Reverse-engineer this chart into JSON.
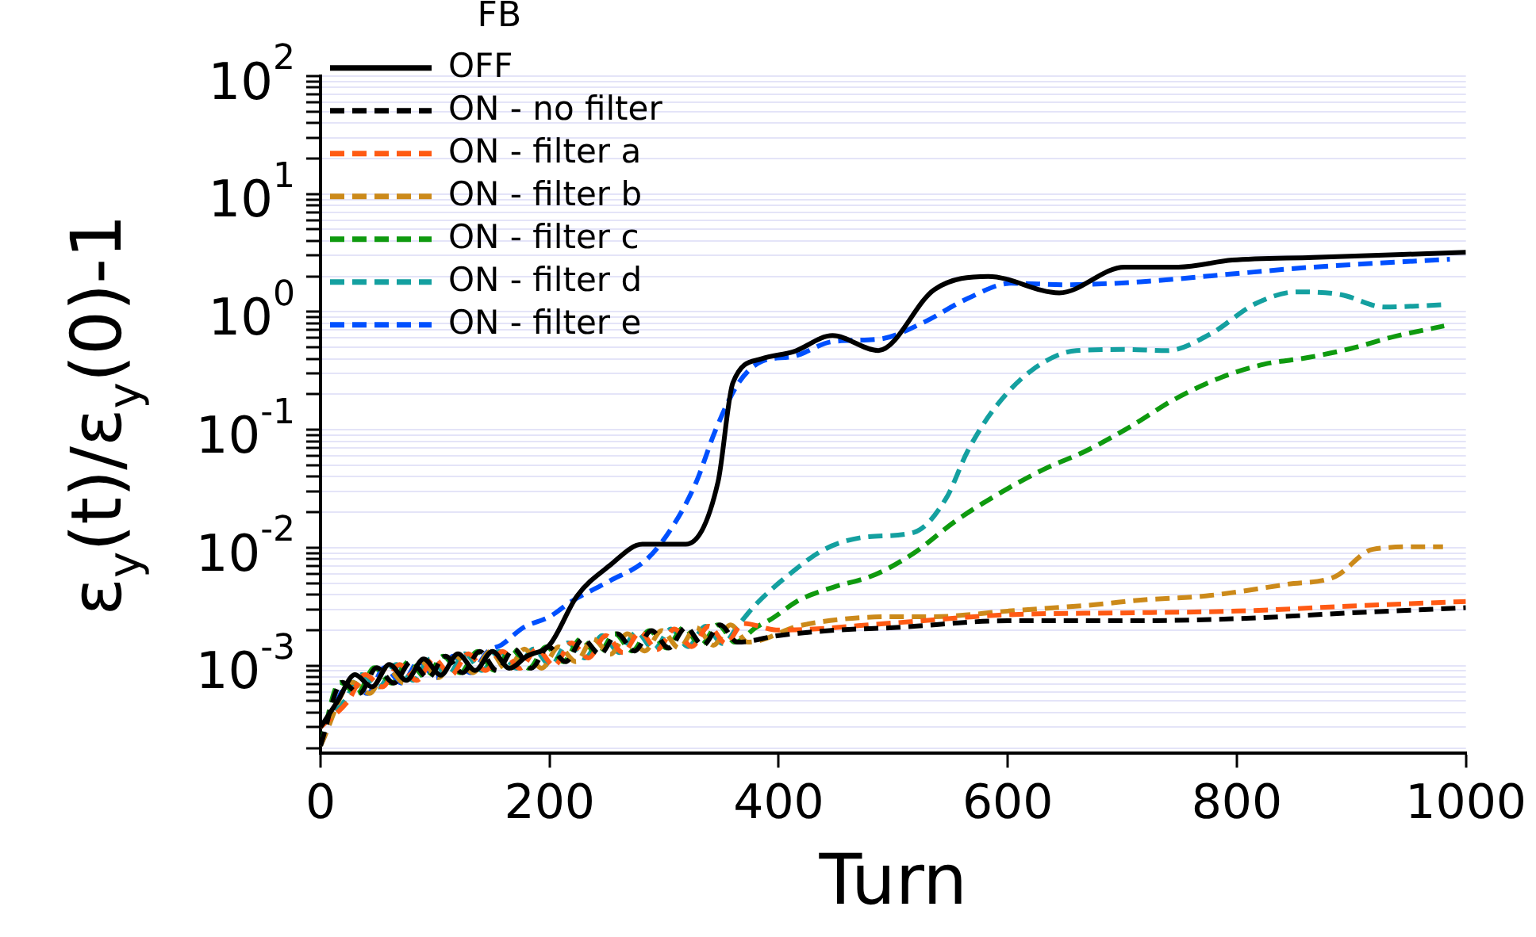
{
  "chart_data": {
    "type": "line",
    "xlabel": "Turn",
    "ylabel": "ε$_{y}$(t)/ε$_{y}$(0)-1",
    "legend_title": "FB",
    "legend": "top left",
    "grid": "y",
    "log": "y",
    "marker": "none",
    "xlim": [
      0,
      1000
    ],
    "xticks": [
      0,
      200,
      400,
      600,
      800,
      1000
    ],
    "ylim": [
      0.00018,
      100
    ],
    "yticks": [
      {
        "value": 0.0002,
        "label": null
      },
      {
        "value": 0.0003,
        "label": null
      },
      {
        "value": 0.0004,
        "label": null
      },
      {
        "value": 0.0005,
        "label": null
      },
      {
        "value": 0.0006,
        "label": null
      },
      {
        "value": 0.0007,
        "label": null
      },
      {
        "value": 0.0008,
        "label": null
      },
      {
        "value": 0.0009,
        "label": null
      },
      {
        "value": 0.001,
        "label": "10$^{-3}$"
      },
      {
        "value": 0.002,
        "label": null
      },
      {
        "value": 0.003,
        "label": null
      },
      {
        "value": 0.004,
        "label": null
      },
      {
        "value": 0.005,
        "label": null
      },
      {
        "value": 0.006,
        "label": null
      },
      {
        "value": 0.007,
        "label": null
      },
      {
        "value": 0.008,
        "label": null
      },
      {
        "value": 0.009,
        "label": null
      },
      {
        "value": 0.01,
        "label": "10$^{-2}$"
      },
      {
        "value": 0.02,
        "label": null
      },
      {
        "value": 0.03,
        "label": null
      },
      {
        "value": 0.04,
        "label": null
      },
      {
        "value": 0.05,
        "label": null
      },
      {
        "value": 0.06,
        "label": null
      },
      {
        "value": 0.07,
        "label": null
      },
      {
        "value": 0.08,
        "label": null
      },
      {
        "value": 0.09,
        "label": null
      },
      {
        "value": 0.1,
        "label": "10$^{-1}$"
      },
      {
        "value": 0.2,
        "label": null
      },
      {
        "value": 0.3,
        "label": null
      },
      {
        "value": 0.4,
        "label": null
      },
      {
        "value": 0.5,
        "label": null
      },
      {
        "value": 0.6,
        "label": null
      },
      {
        "value": 0.7,
        "label": null
      },
      {
        "value": 0.8,
        "label": null
      },
      {
        "value": 0.9,
        "label": null
      },
      {
        "value": 1,
        "label": "10$^{0}$"
      },
      {
        "value": 2,
        "label": null
      },
      {
        "value": 3,
        "label": null
      },
      {
        "value": 4,
        "label": null
      },
      {
        "value": 5,
        "label": null
      },
      {
        "value": 6,
        "label": null
      },
      {
        "value": 7,
        "label": null
      },
      {
        "value": 8,
        "label": null
      },
      {
        "value": 9,
        "label": null
      },
      {
        "value": 10,
        "label": "10$^{1}$"
      },
      {
        "value": 20,
        "label": null
      },
      {
        "value": 30,
        "label": null
      },
      {
        "value": 40,
        "label": null
      },
      {
        "value": 50,
        "label": null
      },
      {
        "value": 60,
        "label": null
      },
      {
        "value": 70,
        "label": null
      },
      {
        "value": 80,
        "label": null
      },
      {
        "value": 90,
        "label": null
      },
      {
        "value": 100,
        "label": "10$^{2}$"
      }
    ],
    "series": [
      {
        "name": "OFF",
        "color": "#000000",
        "line_style": "solid",
        "x": [
          0,
          15,
          30,
          45,
          60,
          75,
          90,
          105,
          120,
          135,
          150,
          165,
          180,
          200,
          224,
          252,
          281,
          319,
          347,
          360,
          385,
          413,
          447,
          487,
          536,
          583,
          645,
          702,
          749,
          796,
          867,
          1000
        ],
        "values": [
          0.0003,
          0.0005,
          0.00084,
          0.00066,
          0.00102,
          0.00075,
          0.00114,
          0.00083,
          0.00126,
          0.00091,
          0.00132,
          0.00095,
          0.0012,
          0.0015,
          0.0039,
          0.007,
          0.0107,
          0.0107,
          0.036,
          0.25,
          0.4,
          0.46,
          0.63,
          0.47,
          1.55,
          2.0,
          1.45,
          2.4,
          2.4,
          2.75,
          2.9,
          3.2
        ]
      },
      {
        "name": "ON - no filter",
        "color": "#000000",
        "line_style": "dashed",
        "x": [
          0,
          19,
          34,
          49,
          64,
          79,
          94,
          109,
          124,
          139,
          154,
          169,
          184,
          199,
          214,
          229,
          244,
          259,
          274,
          289,
          304,
          319,
          334,
          349,
          364,
          400,
          450,
          500,
          600,
          700,
          800,
          900,
          1000
        ],
        "values": [
          0.00021,
          0.00072,
          0.00058,
          0.00096,
          0.00071,
          0.00108,
          0.00079,
          0.0012,
          0.00087,
          0.00132,
          0.00091,
          0.00138,
          0.00095,
          0.00144,
          0.00108,
          0.00168,
          0.00125,
          0.00186,
          0.00133,
          0.00198,
          0.00141,
          0.0021,
          0.00149,
          0.00222,
          0.00158,
          0.0018,
          0.002,
          0.0021,
          0.0024,
          0.0024,
          0.0025,
          0.0028,
          0.0031
        ]
      },
      {
        "name": "ON - filter a",
        "color": "#ff5a14",
        "line_style": "dashed",
        "x": [
          0,
          24,
          39,
          54,
          69,
          84,
          99,
          114,
          129,
          144,
          159,
          174,
          189,
          204,
          219,
          234,
          249,
          264,
          279,
          294,
          309,
          324,
          339,
          354,
          369,
          400,
          500,
          600,
          700,
          800,
          900,
          1000
        ],
        "values": [
          0.0003,
          0.0005,
          0.00084,
          0.00066,
          0.00102,
          0.00075,
          0.00114,
          0.00083,
          0.00126,
          0.00091,
          0.00132,
          0.00095,
          0.00138,
          0.001,
          0.00156,
          0.00116,
          0.0018,
          0.00129,
          0.00192,
          0.00137,
          0.00204,
          0.00145,
          0.00216,
          0.00154,
          0.00228,
          0.002,
          0.0023,
          0.0027,
          0.0028,
          0.0029,
          0.0032,
          0.0035
        ]
      },
      {
        "name": "ON - filter b",
        "color": "#cc8a1a",
        "line_style": "dashed",
        "x": [
          0,
          28,
          43,
          58,
          73,
          88,
          103,
          118,
          133,
          148,
          163,
          178,
          193,
          208,
          223,
          238,
          253,
          268,
          283,
          298,
          313,
          328,
          343,
          358,
          373,
          420,
          500,
          536,
          600,
          678,
          716,
          773,
          844,
          886,
          919,
          962,
          980
        ],
        "values": [
          0.00021,
          0.00072,
          0.00058,
          0.00096,
          0.00071,
          0.00108,
          0.00079,
          0.0012,
          0.00087,
          0.00132,
          0.00091,
          0.00138,
          0.00095,
          0.00144,
          0.00108,
          0.00168,
          0.00125,
          0.00186,
          0.00133,
          0.00198,
          0.00141,
          0.0021,
          0.00149,
          0.00222,
          0.00158,
          0.0022,
          0.0026,
          0.0026,
          0.0029,
          0.0033,
          0.0036,
          0.0039,
          0.0049,
          0.0057,
          0.0097,
          0.0102,
          0.0102
        ]
      },
      {
        "name": "ON - filter c",
        "color": "#0f9a0f",
        "line_style": "dashed",
        "x": [
          0,
          17,
          32,
          47,
          62,
          77,
          92,
          107,
          122,
          137,
          152,
          167,
          182,
          197,
          212,
          227,
          242,
          257,
          272,
          287,
          302,
          317,
          332,
          347,
          362,
          380,
          394,
          418,
          447,
          484,
          518,
          555,
          593,
          631,
          668,
          706,
          745,
          787,
          824,
          862,
          900,
          938,
          981
        ],
        "values": [
          0.00021,
          0.00072,
          0.00058,
          0.00096,
          0.00071,
          0.00108,
          0.00079,
          0.0012,
          0.00087,
          0.00132,
          0.00091,
          0.00138,
          0.00095,
          0.00144,
          0.00108,
          0.00168,
          0.00125,
          0.00186,
          0.00133,
          0.00198,
          0.00141,
          0.0021,
          0.00149,
          0.00222,
          0.00158,
          0.0021,
          0.0025,
          0.0036,
          0.0046,
          0.0059,
          0.009,
          0.017,
          0.029,
          0.046,
          0.066,
          0.105,
          0.18,
          0.28,
          0.36,
          0.41,
          0.49,
          0.62,
          0.76
        ]
      },
      {
        "name": "ON - filter d",
        "color": "#14a0a0",
        "line_style": "dashed",
        "x": [
          0,
          21,
          36,
          51,
          66,
          81,
          96,
          111,
          126,
          141,
          156,
          171,
          186,
          201,
          216,
          231,
          246,
          261,
          276,
          291,
          306,
          321,
          336,
          351,
          366,
          380,
          408,
          441,
          479,
          518,
          546,
          565,
          588,
          621,
          660,
          702,
          739,
          777,
          816,
          853,
          891,
          929,
          981
        ],
        "values": [
          0.0003,
          0.0005,
          0.00084,
          0.00066,
          0.00102,
          0.00075,
          0.00114,
          0.00083,
          0.00126,
          0.00091,
          0.00132,
          0.00095,
          0.00138,
          0.001,
          0.00156,
          0.00116,
          0.0018,
          0.00129,
          0.00192,
          0.00137,
          0.00204,
          0.00145,
          0.00216,
          0.00154,
          0.00228,
          0.0033,
          0.0058,
          0.0098,
          0.0124,
          0.0135,
          0.026,
          0.066,
          0.15,
          0.32,
          0.47,
          0.48,
          0.47,
          0.65,
          1.17,
          1.48,
          1.4,
          1.1,
          1.15
        ]
      },
      {
        "name": "ON - filter e",
        "color": "#0050ff",
        "line_style": "dashed",
        "x": [
          0,
          26,
          41,
          56,
          71,
          86,
          101,
          116,
          131,
          146,
          158,
          177,
          200,
          219,
          252,
          285,
          309,
          328,
          345,
          365,
          385,
          413,
          447,
          489,
          526,
          565,
          603,
          650,
          716,
          796,
          867,
          986
        ],
        "values": [
          0.00021,
          0.00072,
          0.00058,
          0.00096,
          0.00071,
          0.00108,
          0.00079,
          0.0012,
          0.00087,
          0.00132,
          0.0015,
          0.0021,
          0.0026,
          0.0035,
          0.0052,
          0.008,
          0.016,
          0.036,
          0.1,
          0.25,
          0.38,
          0.42,
          0.56,
          0.59,
          0.81,
          1.3,
          1.75,
          1.7,
          1.8,
          2.1,
          2.4,
          2.8
        ]
      }
    ]
  }
}
